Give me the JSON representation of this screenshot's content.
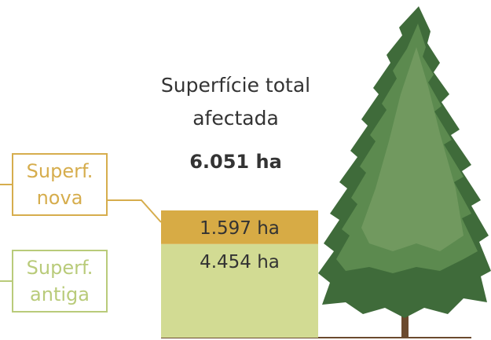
{
  "chart_data": {
    "type": "stacked-bar",
    "title": "Superfície total afectada",
    "annotations": [
      "6.051 ha"
    ],
    "series": [
      {
        "name": "Superf. antiga",
        "color": "#d2db93",
        "legend_color": "#b9cb7a",
        "values": [
          4454
        ],
        "value_labels": [
          "4.454 ha"
        ]
      },
      {
        "name": "Superf. nova",
        "color": "#d7ab45",
        "legend_color": "#d6ad4d",
        "values": [
          1597
        ],
        "value_labels": [
          "1.597 ha"
        ]
      }
    ]
  }
}
